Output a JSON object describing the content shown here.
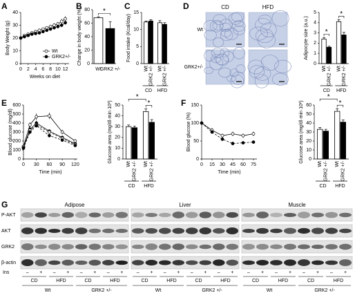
{
  "chart_data": [
    {
      "type": "line",
      "panel": "A",
      "ylabel": "Body Weight (g)",
      "xlabel": "Weeks on diet",
      "x": [
        0,
        1,
        2,
        3,
        4,
        5,
        6,
        7,
        8,
        9,
        10,
        11,
        12
      ],
      "xlim": [
        0,
        13
      ],
      "xticks": [
        0,
        2,
        4,
        6,
        8,
        10,
        12
      ],
      "ylim": [
        0,
        40
      ],
      "yticks": [
        0,
        10,
        20,
        30,
        40
      ],
      "legend": "lower right",
      "series": [
        {
          "name": "Wt",
          "color": "#ffffff",
          "dashed": false,
          "values": [
            20,
            22,
            23,
            24,
            25,
            26,
            27,
            28,
            29,
            30,
            31,
            33,
            35
          ],
          "errors": [
            1,
            1,
            1,
            1,
            1,
            1,
            1,
            1,
            1,
            1.5,
            1.5,
            2,
            2
          ]
        },
        {
          "name": "GRK2+/-",
          "color": "#000000",
          "dashed": false,
          "values": [
            20,
            21,
            22,
            23,
            23.5,
            24,
            25,
            26,
            27,
            28,
            29,
            30,
            32
          ],
          "errors": [
            1,
            1,
            1,
            1,
            1,
            1,
            1,
            1,
            1,
            1,
            1.5,
            1.5,
            1.5
          ]
        }
      ]
    },
    {
      "type": "bar",
      "panel": "B",
      "ylabel": "Change in body weight (%)",
      "categories": [
        "Wt",
        "GRK2 +/-"
      ],
      "values": [
        68,
        52
      ],
      "errors": [
        1.5,
        10
      ],
      "colors": [
        "#ffffff",
        "#000000"
      ],
      "ylim": [
        0,
        80
      ],
      "yticks": [
        0,
        20,
        40,
        60,
        80
      ],
      "annotations": [
        "*"
      ]
    },
    {
      "type": "bar",
      "panel": "C",
      "ylabel": "Food intake (Kcal/day)",
      "categories": [
        "CD",
        "HFD"
      ],
      "ylim": [
        0,
        15
      ],
      "yticks": [
        0,
        5,
        10,
        15
      ],
      "annotations": [],
      "series": [
        {
          "name": "Wt",
          "color": "#ffffff",
          "values": [
            12.2,
            12
          ],
          "errors": [
            0.3,
            0.6
          ]
        },
        {
          "name": "GRK2 +/-",
          "color": "#000000",
          "values": [
            12.5,
            11.5
          ],
          "errors": [
            0.4,
            0.5
          ]
        }
      ]
    },
    {
      "type": "bar",
      "panel": "D",
      "ylabel": "Adipocyte size (a.u.)",
      "categories": [
        "CD",
        "HFD"
      ],
      "ylim": [
        0,
        5
      ],
      "yticks": [
        0,
        1,
        2,
        3,
        4,
        5
      ],
      "annotations": [
        "*",
        "*"
      ],
      "series": [
        {
          "name": "Wt",
          "color": "#ffffff",
          "values": [
            2.4,
            4.1
          ],
          "errors": [
            0.15,
            0.2
          ]
        },
        {
          "name": "GRK2 +/-",
          "color": "#000000",
          "values": [
            1.6,
            2.8
          ],
          "errors": [
            0.1,
            0.25
          ]
        }
      ]
    },
    {
      "type": "line",
      "panel": "E",
      "ylabel": "Blood glucose (mg/dl)",
      "xlabel": "Time (min)",
      "x": [
        0,
        15,
        30,
        60,
        90,
        120
      ],
      "xlim": [
        0,
        125
      ],
      "xticks": [
        0,
        30,
        60,
        90,
        120
      ],
      "ylim": [
        0,
        600
      ],
      "yticks": [
        0,
        100,
        200,
        300,
        400,
        500,
        600
      ],
      "series": [
        {
          "color": "#ffffff",
          "dashed": false,
          "values": [
            140,
            380,
            470,
            480,
            300,
            200
          ],
          "errors": [
            15,
            30,
            35,
            35,
            25,
            20
          ]
        },
        {
          "color": "#000000",
          "dashed": false,
          "values": [
            130,
            330,
            400,
            310,
            240,
            170
          ],
          "errors": [
            15,
            25,
            25,
            20,
            20,
            15
          ]
        },
        {
          "color": "#ffffff",
          "dashed": true,
          "values": [
            130,
            320,
            380,
            300,
            230,
            160
          ],
          "errors": [
            15,
            20,
            20,
            20,
            15,
            15
          ]
        },
        {
          "color": "#000000",
          "dashed": true,
          "values": [
            120,
            300,
            370,
            260,
            210,
            150
          ],
          "errors": [
            15,
            20,
            20,
            20,
            15,
            15
          ]
        }
      ]
    },
    {
      "type": "bar",
      "ylabel": "Glucose area (mg/dl·min·10³)",
      "categories": [
        "CD",
        "HFD"
      ],
      "ylim": [
        0,
        50
      ],
      "yticks": [
        0,
        10,
        20,
        30,
        40,
        50
      ],
      "annotations": [
        "*",
        "*"
      ],
      "series": [
        {
          "name": "Wt",
          "color": "#ffffff",
          "values": [
            30,
            44
          ],
          "errors": [
            1.5,
            2.5
          ]
        },
        {
          "name": "GRK2 +/-",
          "color": "#000000",
          "values": [
            29,
            34
          ],
          "errors": [
            1.5,
            2.5
          ]
        }
      ]
    },
    {
      "type": "line",
      "panel": "F",
      "ylabel": "Blood glucose (%)",
      "xlabel": "Time (min)",
      "x": [
        0,
        15,
        30,
        45,
        60,
        75
      ],
      "xlim": [
        0,
        80
      ],
      "xticks": [
        0,
        15,
        30,
        45,
        60,
        75
      ],
      "ylim": [
        0,
        150
      ],
      "yticks": [
        0,
        50,
        100,
        150
      ],
      "series": [
        {
          "color": "#ffffff",
          "dashed": false,
          "values": [
            100,
            80,
            65,
            70,
            65,
            70
          ],
          "errors": [
            4,
            6,
            6,
            6,
            6,
            6
          ]
        },
        {
          "color": "#000000",
          "dashed": true,
          "values": [
            100,
            75,
            55,
            43,
            45,
            47
          ],
          "errors": [
            4,
            5,
            5,
            5,
            4,
            4
          ]
        }
      ]
    },
    {
      "type": "bar",
      "ylabel": "Glucose area (mg/dl·min·10²)",
      "categories": [
        "CD",
        "HFD"
      ],
      "ylim": [
        0,
        60
      ],
      "yticks": [
        0,
        10,
        20,
        30,
        40,
        50,
        60
      ],
      "annotations": [
        "*",
        "*"
      ],
      "series": [
        {
          "name": "Wt",
          "color": "#ffffff",
          "values": [
            33,
            53
          ],
          "errors": [
            2,
            3
          ]
        },
        {
          "name": "GRK2 +/-",
          "color": "#000000",
          "values": [
            31,
            41
          ],
          "errors": [
            2,
            2.5
          ]
        }
      ]
    }
  ],
  "images": {
    "columns": [
      "CD",
      "HFD"
    ],
    "rows": [
      "Wt",
      "GRK2+/-"
    ]
  },
  "blot": {
    "panel": "G",
    "tissues": [
      "Adipose",
      "Liver",
      "Muscle"
    ],
    "proteins": [
      "P-AKT",
      "AKT",
      "GRK2",
      "β-actin"
    ],
    "ins_label": "Ins",
    "ins": [
      "–",
      "+"
    ],
    "diets": [
      "CD",
      "HFD"
    ],
    "genotypes": [
      "Wt",
      "GRK2 +/-"
    ]
  }
}
